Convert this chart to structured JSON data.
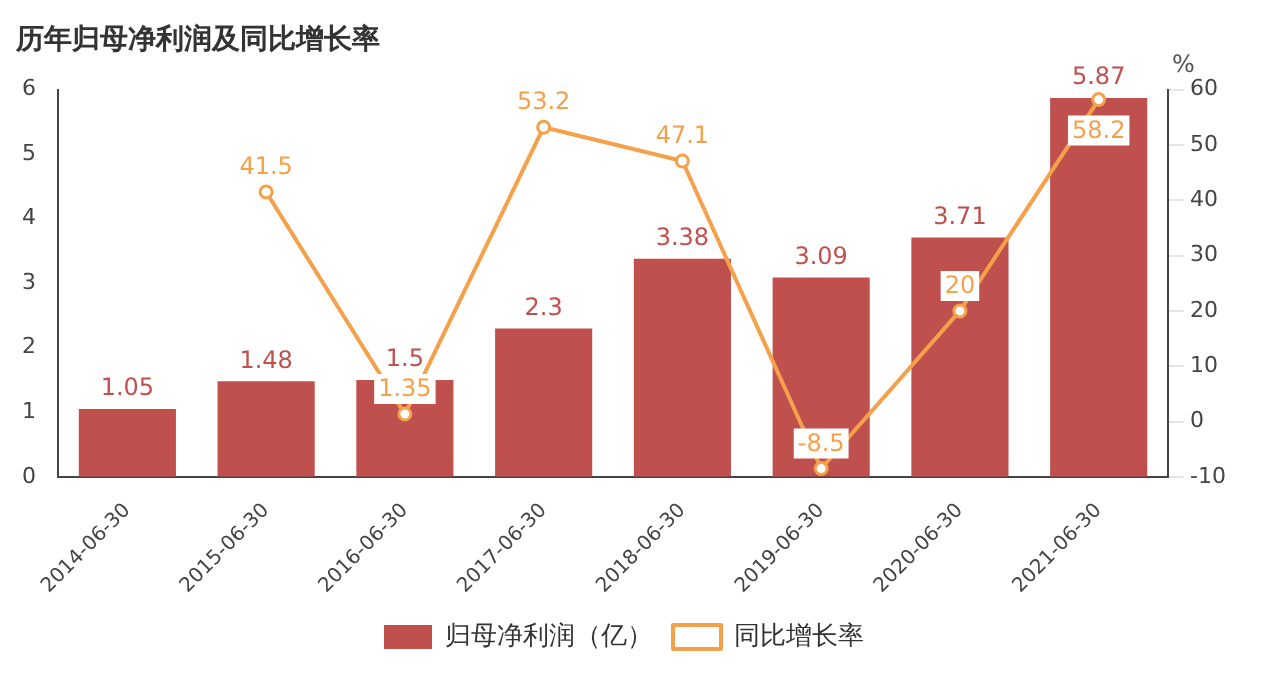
{
  "chart_data": {
    "type": "bar",
    "title": "历年归母净利润及同比增长率",
    "y2label": "%",
    "categories": [
      "2014-06-30",
      "2015-06-30",
      "2016-06-30",
      "2017-06-30",
      "2018-06-30",
      "2019-06-30",
      "2020-06-30",
      "2021-06-30"
    ],
    "series": [
      {
        "name": "归母净利润（亿）",
        "color": "#c0504d",
        "values": [
          1.05,
          1.48,
          1.5,
          2.3,
          3.38,
          3.09,
          3.71,
          5.87
        ]
      },
      {
        "name": "同比增长率",
        "type": "line",
        "axis": "y2",
        "color": "#f5a04a",
        "values": [
          null,
          41.5,
          1.35,
          53.2,
          47.1,
          -8.5,
          20,
          58.2
        ]
      }
    ],
    "ylim": [
      0,
      6
    ],
    "yticks": [
      0,
      1,
      2,
      3,
      4,
      5,
      6
    ],
    "y2lim": [
      -10,
      60
    ],
    "y2ticks": [
      -10,
      0,
      10,
      20,
      30,
      40,
      50,
      60
    ],
    "data_labels": true,
    "legend": "bottom",
    "grid": false,
    "marker": "circle",
    "line_style": "solid"
  }
}
